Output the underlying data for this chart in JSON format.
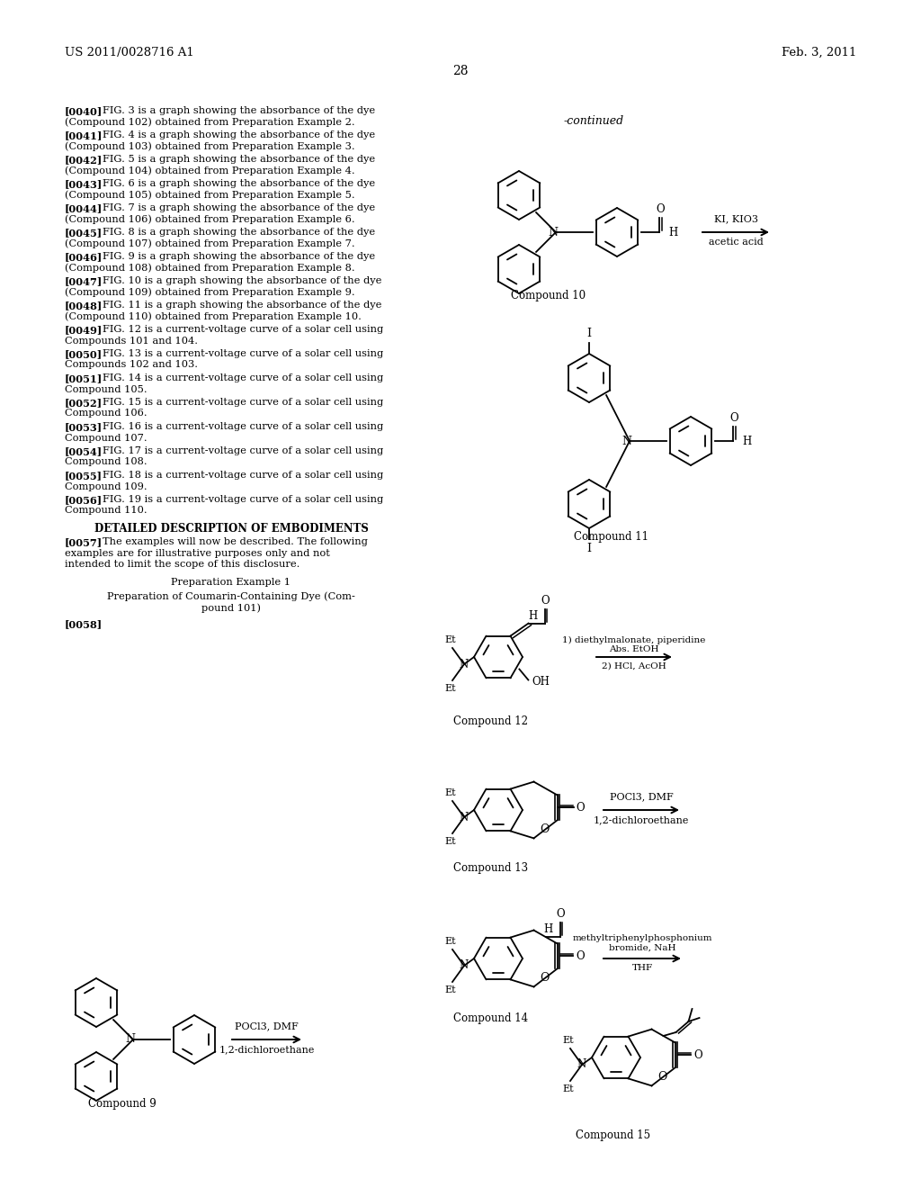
{
  "background_color": "#ffffff",
  "page_header_left": "US 2011/0028716 A1",
  "page_header_right": "Feb. 3, 2011",
  "page_number": "28",
  "left_text": [
    [
      "[0040]",
      "FIG. 3 is a graph showing the absorbance of the dye (Compound 102) obtained from Preparation Example 2."
    ],
    [
      "[0041]",
      "FIG. 4 is a graph showing the absorbance of the dye (Compound 103) obtained from Preparation Example 3."
    ],
    [
      "[0042]",
      "FIG. 5 is a graph showing the absorbance of the dye (Compound 104) obtained from Preparation Example 4."
    ],
    [
      "[0043]",
      "FIG. 6 is a graph showing the absorbance of the dye (Compound 105) obtained from Preparation Example 5."
    ],
    [
      "[0044]",
      "FIG. 7 is a graph showing the absorbance of the dye (Compound 106) obtained from Preparation Example 6."
    ],
    [
      "[0045]",
      "FIG. 8 is a graph showing the absorbance of the dye (Compound 107) obtained from Preparation Example 7."
    ],
    [
      "[0046]",
      "FIG. 9 is a graph showing the absorbance of the dye (Compound 108) obtained from Preparation Example 8."
    ],
    [
      "[0047]",
      "FIG. 10 is a graph showing the absorbance of the dye (Compound 109) obtained from Preparation Example 9."
    ],
    [
      "[0048]",
      "FIG. 11 is a graph showing the absorbance of the dye (Compound 110) obtained from Preparation Example 10."
    ],
    [
      "[0049]",
      "FIG. 12 is a current-voltage curve of a solar cell using Compounds 101 and 104."
    ],
    [
      "[0050]",
      "FIG. 13 is a current-voltage curve of a solar cell using Compounds 102 and 103."
    ],
    [
      "[0051]",
      "FIG. 14 is a current-voltage curve of a solar cell using Compound 105."
    ],
    [
      "[0052]",
      "FIG. 15 is a current-voltage curve of a solar cell using Compound 106."
    ],
    [
      "[0053]",
      "FIG. 16 is a current-voltage curve of a solar cell using Compound 107."
    ],
    [
      "[0054]",
      "FIG. 17 is a current-voltage curve of a solar cell using Compound 108."
    ],
    [
      "[0055]",
      "FIG. 18 is a current-voltage curve of a solar cell using Compound 109."
    ],
    [
      "[0056]",
      "FIG. 19 is a current-voltage curve of a solar cell using Compound 110."
    ]
  ],
  "fig_numbers_bold": [
    "3",
    "4",
    "5",
    "6",
    "7",
    "8",
    "9",
    "10",
    "11",
    "12",
    "13",
    "14",
    "15",
    "16",
    "17",
    "18",
    "19"
  ],
  "section_title": "DETAILED DESCRIPTION OF EMBODIMENTS",
  "para_0057": "The examples will now be described. The following examples are for illustrative purposes only and not intended to limit the scope of this disclosure.",
  "prep_title1": "Preparation Example 1",
  "prep_title2": "Preparation of Coumarin-Containing Dye (Com-pound 101)",
  "ref_0058": "[0058]"
}
